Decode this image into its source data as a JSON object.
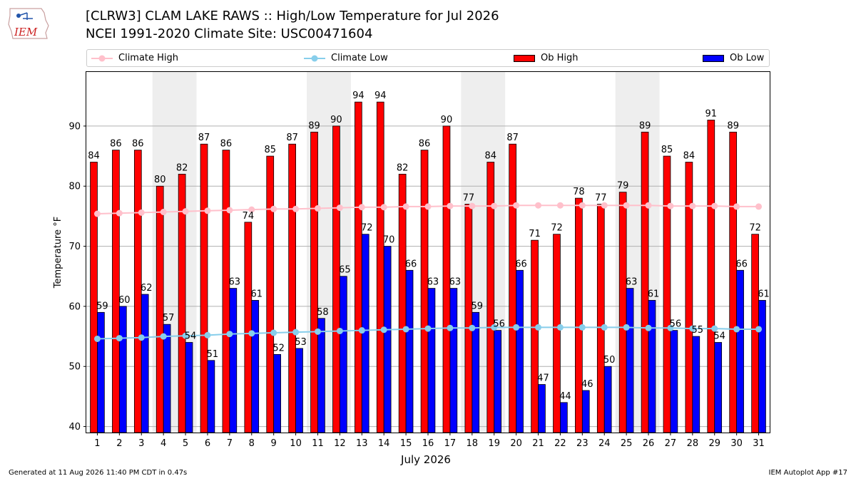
{
  "header": {
    "title_line1": "[CLRW3] CLAM LAKE RAWS :: High/Low Temperature for Jul 2026",
    "title_line2": "NCEI 1991-2020 Climate Site: USC00471604",
    "logo_text": "IEM"
  },
  "footer": {
    "generated": "Generated at 11 Aug 2026 11:40 PM CDT in 0.47s",
    "app": "IEM Autoplot App #17"
  },
  "legend": {
    "climate_high": "Climate High",
    "climate_low": "Climate Low",
    "ob_high": "Ob High",
    "ob_low": "Ob Low",
    "placement": "top"
  },
  "colors": {
    "ob_high": "#ff0000",
    "ob_low": "#0000ff",
    "climate_high": "#ffc0cb",
    "climate_low": "#87ceeb",
    "weekend_shade": "#eeeeee",
    "grid": "#b0b0b0"
  },
  "chart_data": {
    "type": "bar",
    "title": "[CLRW3] CLAM LAKE RAWS :: High/Low Temperature for Jul 2026",
    "subtitle": "NCEI 1991-2020 Climate Site: USC00471604",
    "xlabel": "July 2026",
    "ylabel": "Temperature °F",
    "ylim": [
      39,
      99
    ],
    "yticks": [
      40,
      50,
      60,
      70,
      80,
      90
    ],
    "grid": true,
    "shaded_days": [
      [
        4,
        5
      ],
      [
        11,
        12
      ],
      [
        18,
        19
      ],
      [
        25,
        26
      ]
    ],
    "categories": [
      1,
      2,
      3,
      4,
      5,
      6,
      7,
      8,
      9,
      10,
      11,
      12,
      13,
      14,
      15,
      16,
      17,
      18,
      19,
      20,
      21,
      22,
      23,
      24,
      25,
      26,
      27,
      28,
      29,
      30,
      31
    ],
    "series": [
      {
        "name": "Ob High",
        "kind": "bar",
        "values": [
          84,
          86,
          86,
          80,
          82,
          87,
          86,
          74,
          85,
          87,
          89,
          90,
          94,
          94,
          82,
          86,
          90,
          77,
          84,
          87,
          71,
          72,
          78,
          77,
          79,
          89,
          85,
          84,
          91,
          89,
          72
        ]
      },
      {
        "name": "Ob Low",
        "kind": "bar",
        "values": [
          59,
          60,
          62,
          57,
          54,
          51,
          63,
          61,
          52,
          53,
          58,
          65,
          72,
          70,
          66,
          63,
          63,
          59,
          56,
          66,
          47,
          44,
          46,
          50,
          63,
          61,
          56,
          55,
          54,
          66,
          61
        ]
      },
      {
        "name": "Climate High",
        "kind": "line",
        "values": [
          75.4,
          75.5,
          75.6,
          75.7,
          75.8,
          75.9,
          76.0,
          76.1,
          76.2,
          76.2,
          76.3,
          76.4,
          76.5,
          76.5,
          76.6,
          76.6,
          76.7,
          76.7,
          76.7,
          76.8,
          76.8,
          76.8,
          76.8,
          76.8,
          76.8,
          76.8,
          76.7,
          76.7,
          76.7,
          76.6,
          76.6
        ]
      },
      {
        "name": "Climate Low",
        "kind": "line",
        "values": [
          54.6,
          54.7,
          54.8,
          55.0,
          55.1,
          55.2,
          55.4,
          55.5,
          55.6,
          55.7,
          55.8,
          55.9,
          56.0,
          56.1,
          56.2,
          56.3,
          56.4,
          56.4,
          56.5,
          56.5,
          56.5,
          56.5,
          56.5,
          56.5,
          56.5,
          56.4,
          56.4,
          56.3,
          56.3,
          56.2,
          56.2
        ]
      }
    ]
  }
}
